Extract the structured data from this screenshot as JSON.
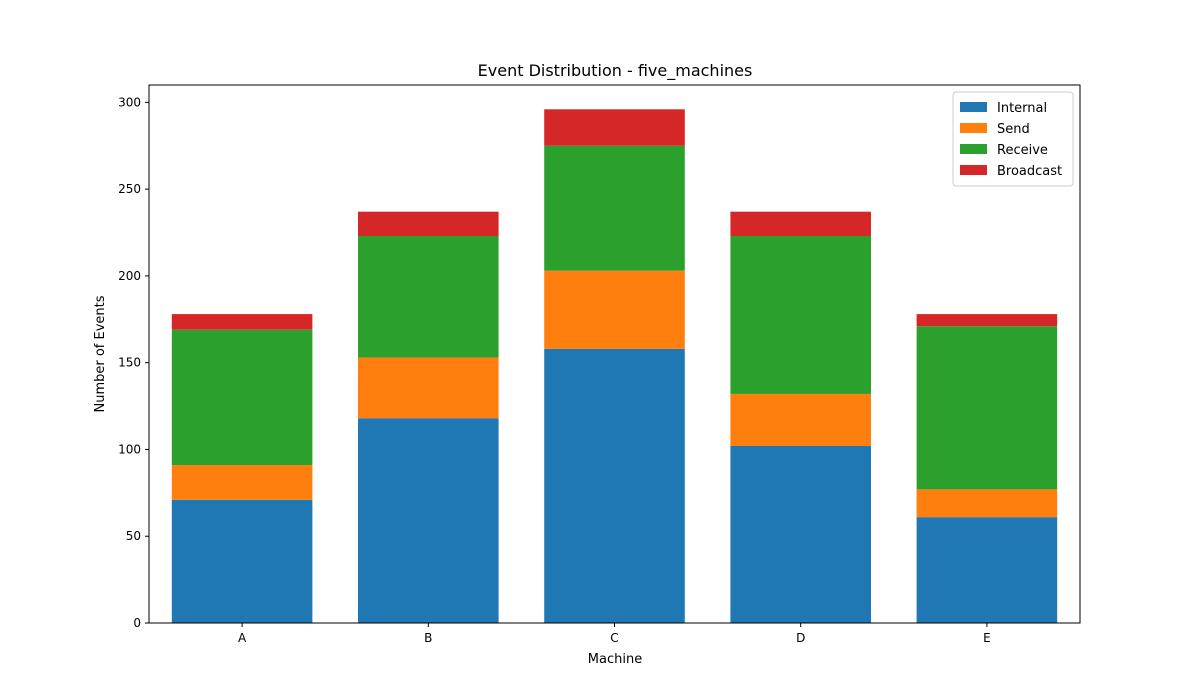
{
  "chart_data": {
    "type": "bar",
    "stacked": true,
    "title": "Event Distribution - five_machines",
    "xlabel": "Machine",
    "ylabel": "Number of Events",
    "categories": [
      "A",
      "B",
      "C",
      "D",
      "E"
    ],
    "ylim": [
      0,
      310
    ],
    "yticks": [
      0,
      50,
      100,
      150,
      200,
      250,
      300
    ],
    "grid": false,
    "legend_position": "top-right",
    "series": [
      {
        "name": "Internal",
        "color": "#1f77b4",
        "values": [
          71,
          118,
          158,
          102,
          61
        ]
      },
      {
        "name": "Send",
        "color": "#ff7f0e",
        "values": [
          20,
          35,
          45,
          30,
          16
        ]
      },
      {
        "name": "Receive",
        "color": "#2ca02c",
        "values": [
          78,
          70,
          72,
          91,
          94
        ]
      },
      {
        "name": "Broadcast",
        "color": "#d62728",
        "values": [
          9,
          14,
          21,
          14,
          7
        ]
      }
    ]
  }
}
